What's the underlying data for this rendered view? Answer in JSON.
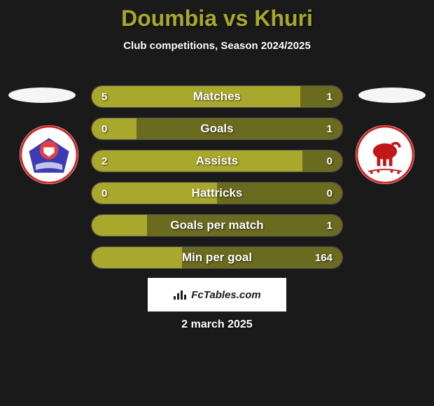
{
  "title": "Doumbia vs Khuri",
  "subtitle": "Club competitions, Season 2024/2025",
  "footer_date": "2 march 2025",
  "attribution": "FcTables.com",
  "colors": {
    "bar_left": "#a8a82c",
    "bar_right": "#6b6b1f",
    "background": "#1a1a1a"
  },
  "club_left": {
    "circle_bg": "#ffffff",
    "outer_ring": "#d32020",
    "inner_fill": "#3b3bb6",
    "accent": "#e04040"
  },
  "club_right": {
    "circle_bg": "#ffffff",
    "border": "#d32020",
    "icon": "#c01818"
  },
  "stats": [
    {
      "label": "Matches",
      "left_val": "5",
      "right_val": "1",
      "left_pct": 83.3,
      "right_pct": 16.7
    },
    {
      "label": "Goals",
      "left_val": "0",
      "right_val": "1",
      "left_pct": 18.0,
      "right_pct": 82.0
    },
    {
      "label": "Assists",
      "left_val": "2",
      "right_val": "0",
      "left_pct": 84.0,
      "right_pct": 16.0
    },
    {
      "label": "Hattricks",
      "left_val": "0",
      "right_val": "0",
      "left_pct": 50.0,
      "right_pct": 50.0
    },
    {
      "label": "Goals per match",
      "left_val": "",
      "right_val": "1",
      "left_pct": 22.0,
      "right_pct": 78.0
    },
    {
      "label": "Min per goal",
      "left_val": "",
      "right_val": "164",
      "left_pct": 36.0,
      "right_pct": 64.0
    }
  ]
}
